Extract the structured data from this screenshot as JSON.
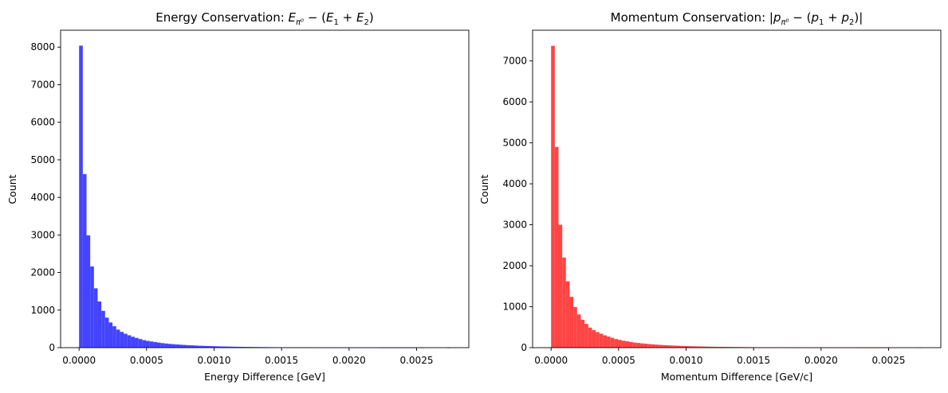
{
  "chart_data": [
    {
      "type": "bar",
      "subtype": "histogram",
      "title": "Energy Conservation: ",
      "title_math": {
        "E": "E",
        "sub": "π⁰",
        "minus": " − (",
        "e1": "E",
        "s1": "1",
        "plus": " + ",
        "e2": "E",
        "s2": "2",
        "close": ")"
      },
      "xlabel": "Energy Difference [GeV]",
      "ylabel": "Count",
      "color": "#4444ff",
      "bin_width": 2.75e-05,
      "x_start": 0.0,
      "xlim": [
        -0.000137,
        0.002887
      ],
      "ylim": [
        0,
        8450
      ],
      "xticks": [
        0.0,
        0.0005,
        0.001,
        0.0015,
        0.002,
        0.0025
      ],
      "xtick_labels": [
        "0.0000",
        "0.0005",
        "0.0010",
        "0.0015",
        "0.0020",
        "0.0025"
      ],
      "yticks": [
        0,
        1000,
        2000,
        3000,
        4000,
        5000,
        6000,
        7000,
        8000
      ],
      "ytick_labels": [
        "0",
        "1000",
        "2000",
        "3000",
        "4000",
        "5000",
        "6000",
        "7000",
        "8000"
      ],
      "grid": false,
      "values": [
        8040,
        4620,
        2990,
        2160,
        1580,
        1230,
        980,
        800,
        670,
        570,
        480,
        420,
        370,
        330,
        290,
        260,
        230,
        200,
        180,
        165,
        150,
        135,
        120,
        110,
        100,
        92,
        85,
        78,
        72,
        66,
        61,
        56,
        52,
        48,
        44,
        41,
        38,
        35,
        32,
        30,
        28,
        26,
        24,
        22,
        20,
        19,
        18,
        17,
        16,
        15,
        14,
        13,
        12,
        11,
        10,
        10,
        9,
        9,
        8,
        8,
        7,
        7,
        6,
        6,
        6,
        5,
        5,
        5,
        4,
        4,
        4,
        3,
        3,
        3,
        3,
        2,
        2,
        2,
        2,
        2,
        2,
        1,
        1,
        1,
        1,
        1,
        1,
        1,
        1,
        1,
        1,
        0,
        1,
        0,
        0,
        0,
        0,
        0,
        0,
        1
      ]
    },
    {
      "type": "bar",
      "subtype": "histogram",
      "title": "Momentum Conservation: ",
      "title_math": {
        "open": "|",
        "p": "p",
        "sub": "π⁰",
        "minus": " − (",
        "p1": "p",
        "s1": "1",
        "plus": " + ",
        "p2": "p",
        "s2": "2",
        "close": ")|"
      },
      "xlabel": "Momentum Difference [GeV/c]",
      "ylabel": "Count",
      "color": "#ff4444",
      "bin_width": 2.75e-05,
      "x_start": 0.0,
      "xlim": [
        -0.000137,
        0.002887
      ],
      "ylim": [
        0,
        7750
      ],
      "xticks": [
        0.0,
        0.0005,
        0.001,
        0.0015,
        0.002,
        0.0025
      ],
      "xtick_labels": [
        "0.0000",
        "0.0005",
        "0.0010",
        "0.0015",
        "0.0020",
        "0.0025"
      ],
      "yticks": [
        0,
        1000,
        2000,
        3000,
        4000,
        5000,
        6000,
        7000
      ],
      "ytick_labels": [
        "0",
        "1000",
        "2000",
        "3000",
        "4000",
        "5000",
        "6000",
        "7000"
      ],
      "grid": false,
      "values": [
        7370,
        4900,
        3000,
        2200,
        1620,
        1240,
        990,
        810,
        680,
        580,
        490,
        430,
        380,
        340,
        300,
        270,
        240,
        210,
        190,
        170,
        155,
        140,
        125,
        115,
        105,
        96,
        88,
        80,
        74,
        68,
        62,
        57,
        53,
        49,
        45,
        42,
        39,
        36,
        33,
        31,
        29,
        27,
        25,
        23,
        21,
        20,
        19,
        18,
        17,
        16,
        15,
        14,
        13,
        12,
        11,
        10,
        10,
        9,
        9,
        8,
        8,
        7,
        7,
        6,
        6,
        6,
        5,
        5,
        5,
        4,
        4,
        4,
        3,
        3,
        3,
        3,
        2,
        2,
        2,
        2,
        2,
        2,
        1,
        1,
        1,
        1,
        1,
        1,
        1,
        1,
        1,
        0,
        0,
        0,
        0,
        0,
        0,
        0,
        0,
        1
      ]
    }
  ]
}
